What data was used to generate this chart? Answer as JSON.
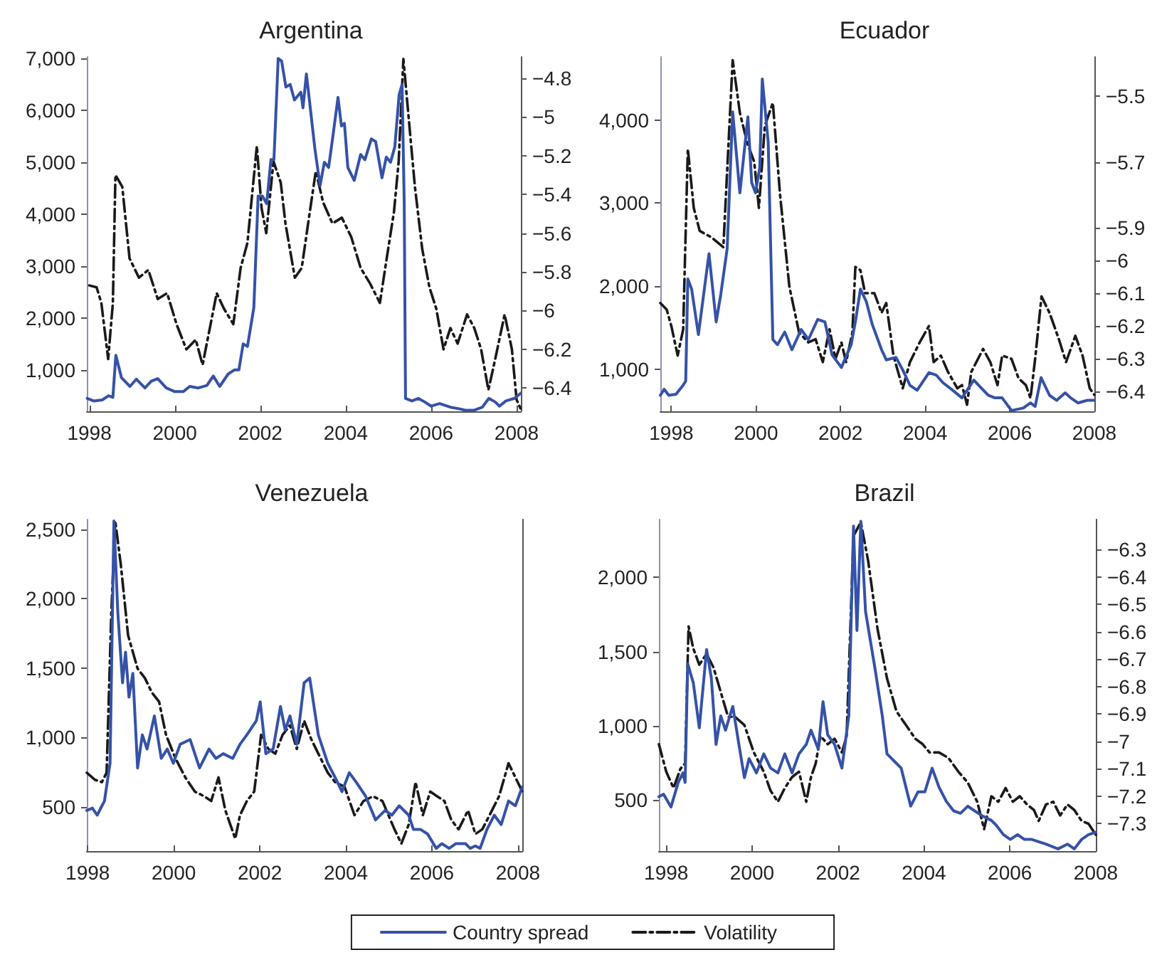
{
  "chart_data": [
    {
      "type": "line",
      "title": "Argentina",
      "marker": "none",
      "grid": false,
      "legend": "bottom",
      "xlim": [
        1997.94,
        2008.1
      ],
      "xticks": [
        1998,
        2000,
        2002,
        2004,
        2006,
        2008
      ],
      "ylim": [
        200,
        7030
      ],
      "yticks": [
        {
          "value": 1000,
          "label": "1,000"
        },
        {
          "value": 2000,
          "label": "2,000"
        },
        {
          "value": 3000,
          "label": "3,000"
        },
        {
          "value": 4000,
          "label": "4,000"
        },
        {
          "value": 5000,
          "label": "5,000"
        },
        {
          "value": 6000,
          "label": "6,000"
        },
        {
          "value": 7000,
          "label": "7,000"
        }
      ],
      "y2lim": [
        -6.52,
        -4.69
      ],
      "y2ticks": [
        {
          "value": -6.4,
          "label": "−6.4"
        },
        {
          "value": -6.2,
          "label": "−6.2"
        },
        {
          "value": -6,
          "label": "−6"
        },
        {
          "value": -5.8,
          "label": "−5.8"
        },
        {
          "value": -5.6,
          "label": "−5.6"
        },
        {
          "value": -5.4,
          "label": "−5.4"
        },
        {
          "value": -5.2,
          "label": "−5.2"
        },
        {
          "value": -5,
          "label": "−5"
        },
        {
          "value": -4.8,
          "label": "−4.8"
        }
      ],
      "series": [
        {
          "name": "Volatility",
          "color": "#1a1a1a",
          "axis": "y2",
          "line_style": "dashed",
          "x": [
            1998.0,
            1998.17,
            1998.28,
            1998.44,
            1998.55,
            1998.61,
            1998.77,
            1998.94,
            1999.16,
            1999.38,
            1999.6,
            1999.82,
            2000.04,
            2000.27,
            2000.49,
            2000.65,
            2000.82,
            2000.98,
            2001.15,
            2001.37,
            2001.54,
            2001.7,
            2001.92,
            2002.03,
            2002.14,
            2002.31,
            2002.48,
            2002.59,
            2002.81,
            2002.97,
            2003.14,
            2003.3,
            2003.47,
            2003.69,
            2003.91,
            2004.13,
            2004.35,
            2004.57,
            2004.8,
            2004.96,
            2005.13,
            2005.24,
            2005.35,
            2005.46,
            2005.62,
            2005.79,
            2005.96,
            2006.12,
            2006.29,
            2006.45,
            2006.62,
            2006.84,
            2007.01,
            2007.17,
            2007.34,
            2007.5,
            2007.72,
            2007.89,
            2008.0,
            2008.1
          ],
          "values": [
            -5.87,
            -5.88,
            -5.96,
            -6.25,
            -5.96,
            -5.3,
            -5.36,
            -5.73,
            -5.83,
            -5.79,
            -5.94,
            -5.91,
            -6.07,
            -6.2,
            -6.15,
            -6.28,
            -6.09,
            -5.91,
            -5.99,
            -6.07,
            -5.78,
            -5.65,
            -5.15,
            -5.47,
            -5.6,
            -5.23,
            -5.34,
            -5.55,
            -5.83,
            -5.78,
            -5.52,
            -5.28,
            -5.44,
            -5.55,
            -5.52,
            -5.62,
            -5.78,
            -5.86,
            -5.96,
            -5.73,
            -5.49,
            -5.23,
            -4.7,
            -4.97,
            -5.36,
            -5.68,
            -5.88,
            -5.99,
            -6.2,
            -6.09,
            -6.17,
            -6.02,
            -6.09,
            -6.2,
            -6.41,
            -6.25,
            -6.02,
            -6.2,
            -6.46,
            -6.51
          ]
        },
        {
          "name": "Country spread",
          "color": "#3552a8",
          "axis": "y",
          "line_style": "solid",
          "x": [
            1997.95,
            1998.1,
            1998.3,
            1998.45,
            1998.55,
            1998.62,
            1998.75,
            1998.95,
            1999.1,
            1999.3,
            1999.45,
            1999.6,
            1999.8,
            2000.0,
            2000.2,
            2000.35,
            2000.55,
            2000.75,
            2000.9,
            2001.05,
            2001.25,
            2001.4,
            2001.5,
            2001.6,
            2001.7,
            2001.85,
            2001.95,
            2002.05,
            2002.15,
            2002.25,
            2002.32,
            2002.42,
            2002.5,
            2002.6,
            2002.7,
            2002.8,
            2002.95,
            2003.0,
            2003.08,
            2003.15,
            2003.28,
            2003.4,
            2003.5,
            2003.6,
            2003.7,
            2003.82,
            2003.9,
            2003.97,
            2004.05,
            2004.2,
            2004.35,
            2004.45,
            2004.6,
            2004.7,
            2004.85,
            2004.95,
            2005.05,
            2005.15,
            2005.25,
            2005.32,
            2005.37,
            2005.4,
            2005.55,
            2005.7,
            2005.85,
            2006.0,
            2006.2,
            2006.45,
            2006.65,
            2006.8,
            2007.0,
            2007.2,
            2007.35,
            2007.5,
            2007.6,
            2007.75,
            2007.95,
            2008.1
          ],
          "values": [
            450,
            400,
            420,
            500,
            470,
            1280,
            850,
            680,
            820,
            650,
            780,
            830,
            650,
            580,
            580,
            680,
            650,
            700,
            880,
            680,
            920,
            1000,
            1000,
            1500,
            1450,
            2200,
            4350,
            4350,
            4200,
            5050,
            5050,
            7000,
            6950,
            6450,
            6500,
            6200,
            6350,
            6050,
            6700,
            6200,
            5250,
            4550,
            5000,
            4900,
            5500,
            6250,
            5700,
            5750,
            4900,
            4650,
            5150,
            5050,
            5450,
            5400,
            4700,
            5100,
            5000,
            5300,
            6300,
            6500,
            4200,
            450,
            400,
            450,
            380,
            300,
            350,
            280,
            250,
            220,
            220,
            280,
            450,
            380,
            300,
            400,
            450,
            550
          ]
        }
      ]
    },
    {
      "type": "line",
      "title": "Ecuador",
      "marker": "none",
      "grid": false,
      "legend": "bottom",
      "xlim": [
        1997.74,
        2008.0
      ],
      "xticks": [
        1998,
        2000,
        2002,
        2004,
        2006,
        2008
      ],
      "ylim": [
        490,
        4760
      ],
      "yticks": [
        {
          "value": 1000,
          "label": "1,000"
        },
        {
          "value": 2000,
          "label": "2,000"
        },
        {
          "value": 3000,
          "label": "3,000"
        },
        {
          "value": 4000,
          "label": "4,000"
        }
      ],
      "y2lim": [
        -6.46,
        -5.38
      ],
      "y2ticks": [
        {
          "value": -6.4,
          "label": "−6.4"
        },
        {
          "value": -6.3,
          "label": "−6.3"
        },
        {
          "value": -6.2,
          "label": "−6.2"
        },
        {
          "value": -6.1,
          "label": "−6.1"
        },
        {
          "value": -6,
          "label": "−6"
        },
        {
          "value": -5.9,
          "label": "−5.9"
        },
        {
          "value": -5.7,
          "label": "−5.7"
        },
        {
          "value": -5.5,
          "label": "−5.5"
        }
      ],
      "series": [
        {
          "name": "Volatility",
          "color": "#1a1a1a",
          "axis": "y2",
          "line_style": "dashed",
          "x": [
            1997.74,
            1997.89,
            1998.0,
            1998.15,
            1998.28,
            1998.39,
            1998.53,
            1998.67,
            1998.95,
            1999.23,
            1999.45,
            1999.62,
            1999.79,
            1999.96,
            2000.07,
            2000.21,
            2000.4,
            2000.57,
            2000.79,
            2001.02,
            2001.24,
            2001.41,
            2001.58,
            2001.74,
            2001.88,
            2002.02,
            2002.13,
            2002.28,
            2002.35,
            2002.47,
            2002.58,
            2002.8,
            2002.97,
            2003.08,
            2003.25,
            2003.47,
            2003.64,
            2003.87,
            2004.09,
            2004.2,
            2004.37,
            2004.54,
            2004.76,
            2004.87,
            2004.99,
            2005.09,
            2005.37,
            2005.54,
            2005.71,
            2005.82,
            2006.04,
            2006.21,
            2006.38,
            2006.49,
            2006.6,
            2006.75,
            2006.94,
            2007.16,
            2007.33,
            2007.55,
            2007.72,
            2007.89,
            2008.0
          ],
          "values": [
            -6.13,
            -6.15,
            -6.2,
            -6.29,
            -6.21,
            -5.66,
            -5.84,
            -5.91,
            -5.93,
            -5.96,
            -5.39,
            -5.55,
            -5.64,
            -5.7,
            -5.84,
            -5.59,
            -5.52,
            -5.8,
            -6.08,
            -6.22,
            -6.25,
            -6.24,
            -6.31,
            -6.21,
            -6.3,
            -6.25,
            -6.31,
            -6.22,
            -6.02,
            -6.03,
            -6.1,
            -6.1,
            -6.16,
            -6.13,
            -6.29,
            -6.39,
            -6.31,
            -6.25,
            -6.2,
            -6.31,
            -6.29,
            -6.34,
            -6.39,
            -6.38,
            -6.44,
            -6.34,
            -6.27,
            -6.31,
            -6.38,
            -6.29,
            -6.3,
            -6.36,
            -6.38,
            -6.42,
            -6.3,
            -6.11,
            -6.16,
            -6.24,
            -6.31,
            -6.23,
            -6.29,
            -6.39,
            -6.41
          ]
        },
        {
          "name": "Country spread",
          "color": "#3552a8",
          "axis": "y",
          "line_style": "solid",
          "x": [
            1997.74,
            1997.83,
            1997.94,
            1998.11,
            1998.28,
            1998.34,
            1998.39,
            1998.48,
            1998.64,
            1998.89,
            1999.06,
            1999.17,
            1999.32,
            1999.45,
            1999.62,
            1999.81,
            1999.9,
            1999.99,
            2000.09,
            2000.15,
            2000.29,
            2000.4,
            2000.51,
            2000.68,
            2000.85,
            2001.07,
            2001.24,
            2001.46,
            2001.63,
            2001.8,
            2002.02,
            2002.25,
            2002.36,
            2002.47,
            2002.61,
            2002.75,
            2002.97,
            2003.08,
            2003.31,
            2003.47,
            2003.64,
            2003.81,
            2004.09,
            2004.26,
            2004.42,
            2004.65,
            2004.87,
            2005.15,
            2005.32,
            2005.49,
            2005.65,
            2005.82,
            2006.04,
            2006.32,
            2006.49,
            2006.6,
            2006.74,
            2006.94,
            2007.11,
            2007.31,
            2007.44,
            2007.61,
            2007.83,
            2008.0
          ],
          "values": [
            683,
            756,
            683,
            695,
            805,
            854,
            2085,
            1963,
            1415,
            2390,
            1567,
            1902,
            2451,
            4098,
            3122,
            4037,
            3244,
            3122,
            3427,
            4494,
            3732,
            1354,
            1293,
            1445,
            1232,
            1476,
            1354,
            1598,
            1567,
            1171,
            1018,
            1293,
            1598,
            1963,
            1811,
            1537,
            1232,
            1110,
            1140,
            988,
            805,
            744,
            957,
            927,
            835,
            744,
            652,
            866,
            774,
            683,
            652,
            652,
            500,
            530,
            591,
            549,
            896,
            683,
            622,
            713,
            652,
            591,
            622,
            622
          ]
        }
      ]
    },
    {
      "type": "line",
      "title": "Venezuela",
      "marker": "none",
      "grid": false,
      "legend": "bottom",
      "xlim": [
        1997.98,
        2008.1
      ],
      "xticks": [
        1998,
        2000,
        2002,
        2004,
        2006,
        2008
      ],
      "ylim": [
        180,
        2570
      ],
      "yticks": [
        500,
        {
          "value": 1000,
          "label": "1,000"
        },
        {
          "value": 1500,
          "label": "1,500"
        },
        {
          "value": 2000,
          "label": "2,000"
        },
        {
          "value": 2500,
          "label": "2,500"
        }
      ],
      "series": [
        {
          "name": "Volatility",
          "color": "#1a1a1a",
          "axis": "y",
          "line_style": "dashed",
          "x": [
            1997.98,
            1998.17,
            1998.33,
            1998.44,
            1998.55,
            1998.64,
            1998.77,
            1998.94,
            1999.16,
            1999.33,
            1999.49,
            1999.66,
            1999.82,
            2000.04,
            2000.27,
            2000.49,
            2000.71,
            2000.87,
            2001.04,
            2001.2,
            2001.43,
            2001.54,
            2001.7,
            2001.87,
            2002.03,
            2002.2,
            2002.36,
            2002.53,
            2002.7,
            2002.86,
            2003.03,
            2003.2,
            2003.36,
            2003.58,
            2003.75,
            2003.97,
            2004.2,
            2004.41,
            2004.63,
            2004.85,
            2005.13,
            2005.29,
            2005.46,
            2005.62,
            2005.79,
            2005.96,
            2006.12,
            2006.29,
            2006.45,
            2006.62,
            2006.84,
            2007.01,
            2007.17,
            2007.34,
            2007.56,
            2007.78,
            2007.94,
            2008.1
          ],
          "values": [
            745,
            694,
            677,
            745,
            1904,
            2560,
            2245,
            1734,
            1495,
            1427,
            1324,
            1256,
            1018,
            848,
            711,
            609,
            575,
            541,
            711,
            473,
            269,
            439,
            541,
            609,
            1018,
            916,
            882,
            1018,
            1086,
            916,
            1120,
            984,
            882,
            745,
            677,
            643,
            439,
            541,
            575,
            541,
            337,
            234,
            371,
            677,
            439,
            609,
            575,
            541,
            405,
            337,
            473,
            303,
            337,
            439,
            575,
            813,
            711,
            609
          ]
        },
        {
          "name": "Country spread",
          "color": "#3552a8",
          "axis": "y",
          "line_style": "solid",
          "x": [
            1997.98,
            1998.11,
            1998.22,
            1998.39,
            1998.52,
            1998.61,
            1998.7,
            1998.81,
            1998.88,
            1998.96,
            1999.05,
            1999.16,
            1999.27,
            1999.38,
            1999.55,
            1999.71,
            1999.85,
            1999.99,
            2000.15,
            2000.38,
            2000.6,
            2000.82,
            2000.98,
            2001.15,
            2001.37,
            2001.54,
            2001.7,
            2001.92,
            2002.01,
            2002.14,
            2002.31,
            2002.48,
            2002.59,
            2002.7,
            2002.86,
            2003.03,
            2003.16,
            2003.36,
            2003.58,
            2003.75,
            2003.91,
            2004.08,
            2004.24,
            2004.46,
            2004.69,
            2004.91,
            2005.07,
            2005.24,
            2005.46,
            2005.57,
            2005.73,
            2005.9,
            2006.1,
            2006.23,
            2006.4,
            2006.56,
            2006.78,
            2006.89,
            2007.01,
            2007.12,
            2007.28,
            2007.45,
            2007.61,
            2007.78,
            2007.94,
            2008.1
          ],
          "values": [
            473,
            490,
            439,
            541,
            813,
            2560,
            1904,
            1393,
            1614,
            1290,
            1461,
            779,
            1018,
            916,
            1154,
            848,
            916,
            813,
            950,
            984,
            779,
            916,
            848,
            882,
            848,
            950,
            1018,
            1120,
            1256,
            882,
            916,
            1222,
            1052,
            1154,
            950,
            1393,
            1427,
            1018,
            813,
            711,
            609,
            745,
            677,
            575,
            405,
            473,
            439,
            507,
            439,
            337,
            337,
            303,
            200,
            234,
            200,
            234,
            234,
            200,
            217,
            200,
            337,
            439,
            371,
            541,
            507,
            643
          ]
        }
      ]
    },
    {
      "type": "line",
      "title": "Brazil",
      "marker": "none",
      "grid": false,
      "legend": "bottom",
      "xlim": [
        1997.83,
        2008.0
      ],
      "xticks": [
        1998,
        2000,
        2002,
        2004,
        2006,
        2008
      ],
      "ylim": [
        155,
        2390
      ],
      "yticks": [
        500,
        {
          "value": 1000,
          "label": "1,000"
        },
        {
          "value": 1500,
          "label": "1,500"
        },
        {
          "value": 2000,
          "label": "2,000"
        }
      ],
      "y2lim": [
        -7.4,
        -6.19
      ],
      "y2ticks": [
        {
          "value": -7.3,
          "label": "−7.3"
        },
        {
          "value": -7.2,
          "label": "−7.2"
        },
        {
          "value": -7.1,
          "label": "−7.1"
        },
        {
          "value": -7,
          "label": "−7"
        },
        {
          "value": -6.9,
          "label": "−6.9"
        },
        {
          "value": -6.8,
          "label": "−6.8"
        },
        {
          "value": -6.7,
          "label": "−6.7"
        },
        {
          "value": -6.6,
          "label": "−6.6"
        },
        {
          "value": -6.5,
          "label": "−6.5"
        },
        {
          "value": -6.4,
          "label": "−6.4"
        },
        {
          "value": -6.3,
          "label": "−6.3"
        }
      ],
      "series": [
        {
          "name": "Volatility",
          "color": "#1a1a1a",
          "axis": "y2",
          "line_style": "dashed",
          "x": [
            1997.83,
            1998.0,
            1998.17,
            1998.33,
            1998.44,
            1998.52,
            1998.63,
            1998.77,
            1998.94,
            1999.1,
            1999.27,
            1999.44,
            1999.6,
            1999.82,
            2000.04,
            2000.27,
            2000.43,
            2000.6,
            2000.76,
            2000.93,
            2001.09,
            2001.26,
            2001.37,
            2001.48,
            2001.59,
            2001.76,
            2001.92,
            2002.09,
            2002.2,
            2002.36,
            2002.53,
            2002.7,
            2002.92,
            2003.14,
            2003.36,
            2003.58,
            2003.8,
            2003.97,
            2004.13,
            2004.35,
            2004.57,
            2004.8,
            2005.02,
            2005.24,
            2005.4,
            2005.57,
            2005.73,
            2005.9,
            2006.07,
            2006.23,
            2006.4,
            2006.56,
            2006.67,
            2006.84,
            2007.01,
            2007.17,
            2007.34,
            2007.5,
            2007.67,
            2007.83,
            2008.0
          ],
          "values": [
            -7.01,
            -7.11,
            -7.17,
            -7.1,
            -7.08,
            -6.58,
            -6.66,
            -6.72,
            -6.68,
            -6.73,
            -6.82,
            -6.91,
            -6.91,
            -6.94,
            -7.04,
            -7.11,
            -7.18,
            -7.22,
            -7.17,
            -7.13,
            -7.11,
            -7.22,
            -7.13,
            -7.08,
            -6.98,
            -7.01,
            -6.99,
            -7.04,
            -6.98,
            -6.25,
            -6.2,
            -6.34,
            -6.59,
            -6.77,
            -6.89,
            -6.94,
            -6.99,
            -7.01,
            -7.04,
            -7.04,
            -7.06,
            -7.11,
            -7.15,
            -7.22,
            -7.32,
            -7.2,
            -7.22,
            -7.17,
            -7.22,
            -7.2,
            -7.23,
            -7.25,
            -7.29,
            -7.23,
            -7.22,
            -7.27,
            -7.23,
            -7.25,
            -7.29,
            -7.3,
            -7.34
          ]
        },
        {
          "name": "Country spread",
          "color": "#3552a8",
          "axis": "y",
          "line_style": "solid",
          "x": [
            1997.83,
            1997.94,
            1998.11,
            1998.28,
            1998.39,
            1998.44,
            1998.5,
            1998.63,
            1998.77,
            1998.94,
            1999.05,
            1999.16,
            1999.27,
            1999.38,
            1999.55,
            1999.71,
            1999.82,
            1999.93,
            2000.1,
            2000.27,
            2000.43,
            2000.6,
            2000.76,
            2000.93,
            2001.09,
            2001.26,
            2001.37,
            2001.54,
            2001.65,
            2001.76,
            2001.92,
            2002.09,
            2002.25,
            2002.36,
            2002.44,
            2002.53,
            2002.64,
            2002.86,
            2003.03,
            2003.14,
            2003.36,
            2003.47,
            2003.69,
            2003.86,
            2004.02,
            2004.19,
            2004.35,
            2004.52,
            2004.69,
            2004.85,
            2005.02,
            2005.18,
            2005.35,
            2005.57,
            2005.68,
            2005.85,
            2006.01,
            2006.18,
            2006.34,
            2006.51,
            2006.67,
            2006.84,
            2007.12,
            2007.34,
            2007.5,
            2007.67,
            2007.83,
            2008.0
          ],
          "values": [
            522,
            538,
            452,
            618,
            682,
            618,
            1418,
            1290,
            986,
            1514,
            1322,
            874,
            1066,
            970,
            1130,
            842,
            650,
            778,
            682,
            810,
            714,
            682,
            810,
            682,
            810,
            874,
            970,
            842,
            1162,
            938,
            874,
            714,
            1066,
            2346,
            1642,
            2378,
            1770,
            1386,
            1066,
            810,
            746,
            714,
            458,
            554,
            554,
            714,
            586,
            490,
            426,
            410,
            458,
            426,
            394,
            362,
            330,
            266,
            234,
            266,
            234,
            234,
            218,
            202,
            170,
            202,
            170,
            234,
            266,
            282
          ]
        }
      ]
    }
  ]
}
